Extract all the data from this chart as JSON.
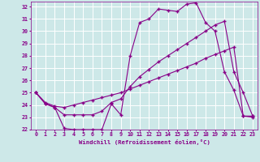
{
  "background_color": "#cde8e8",
  "grid_color": "#ffffff",
  "line_color": "#880088",
  "xlabel": "Windchill (Refroidissement éolien,°C)",
  "xlim": [
    -0.5,
    23.5
  ],
  "ylim": [
    22,
    32.4
  ],
  "yticks": [
    22,
    23,
    24,
    25,
    26,
    27,
    28,
    29,
    30,
    31,
    32
  ],
  "xticks": [
    0,
    1,
    2,
    3,
    4,
    5,
    6,
    7,
    8,
    9,
    10,
    11,
    12,
    13,
    14,
    15,
    16,
    17,
    18,
    19,
    20,
    21,
    22,
    23
  ],
  "line1_x": [
    0,
    1,
    2,
    3,
    4,
    5,
    6,
    7,
    8,
    9,
    10,
    11,
    12,
    13,
    14,
    15,
    16,
    17,
    18,
    19,
    20,
    21,
    22,
    23
  ],
  "line1_y": [
    25.0,
    24.1,
    23.8,
    22.1,
    22.0,
    22.0,
    22.0,
    22.0,
    24.1,
    23.2,
    28.0,
    30.7,
    31.0,
    31.8,
    31.7,
    31.6,
    32.2,
    32.3,
    30.7,
    30.0,
    26.7,
    25.2,
    23.1,
    23.0
  ],
  "line2_x": [
    0,
    1,
    2,
    3,
    4,
    5,
    6,
    7,
    8,
    9,
    10,
    11,
    12,
    13,
    14,
    15,
    16,
    17,
    18,
    19,
    20,
    21,
    22,
    23
  ],
  "line2_y": [
    25.0,
    24.1,
    23.8,
    23.2,
    23.2,
    23.2,
    23.2,
    23.5,
    24.2,
    24.5,
    25.5,
    26.3,
    26.9,
    27.5,
    28.0,
    28.5,
    29.0,
    29.5,
    30.0,
    30.5,
    30.8,
    26.7,
    25.0,
    23.1
  ],
  "line3_x": [
    0,
    1,
    2,
    3,
    4,
    5,
    6,
    7,
    8,
    9,
    10,
    11,
    12,
    13,
    14,
    15,
    16,
    17,
    18,
    19,
    20,
    21,
    22,
    23
  ],
  "line3_y": [
    25.0,
    24.2,
    23.9,
    23.8,
    24.0,
    24.2,
    24.4,
    24.6,
    24.8,
    25.0,
    25.3,
    25.6,
    25.9,
    26.2,
    26.5,
    26.8,
    27.1,
    27.4,
    27.8,
    28.1,
    28.4,
    28.7,
    23.1,
    23.1
  ]
}
